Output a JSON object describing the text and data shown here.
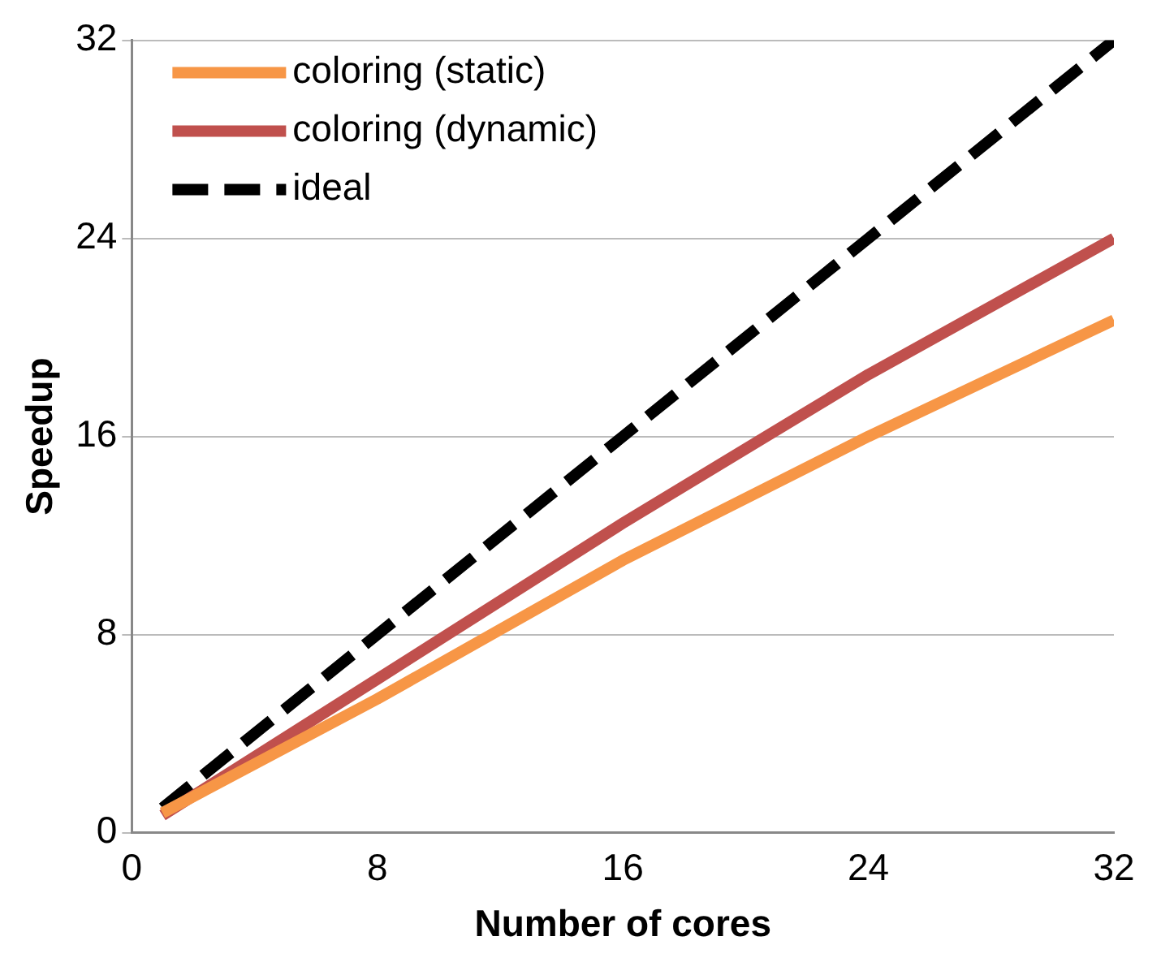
{
  "chart_data": {
    "type": "line",
    "xlabel": "Number of cores",
    "ylabel": "Speedup",
    "x": [
      1,
      8,
      16,
      24,
      32
    ],
    "series": [
      {
        "name": "coloring (static)",
        "color": "#f79646",
        "values": [
          0.8,
          5.4,
          11,
          16,
          20.7
        ]
      },
      {
        "name": "coloring (dynamic)",
        "color": "#c0504d",
        "values": [
          0.7,
          6.2,
          12.5,
          18.5,
          24
        ]
      },
      {
        "name": "ideal",
        "color": "#000000",
        "values": [
          1,
          8,
          16,
          24,
          32
        ],
        "line_style": "dashed"
      }
    ],
    "xlim": [
      0,
      32
    ],
    "xticks": [
      0,
      8,
      16,
      24,
      32
    ],
    "ylim": [
      0,
      32
    ],
    "yticks": [
      0,
      8,
      16,
      24,
      32
    ],
    "grid": "y",
    "legend": "top left",
    "marker": "none"
  }
}
